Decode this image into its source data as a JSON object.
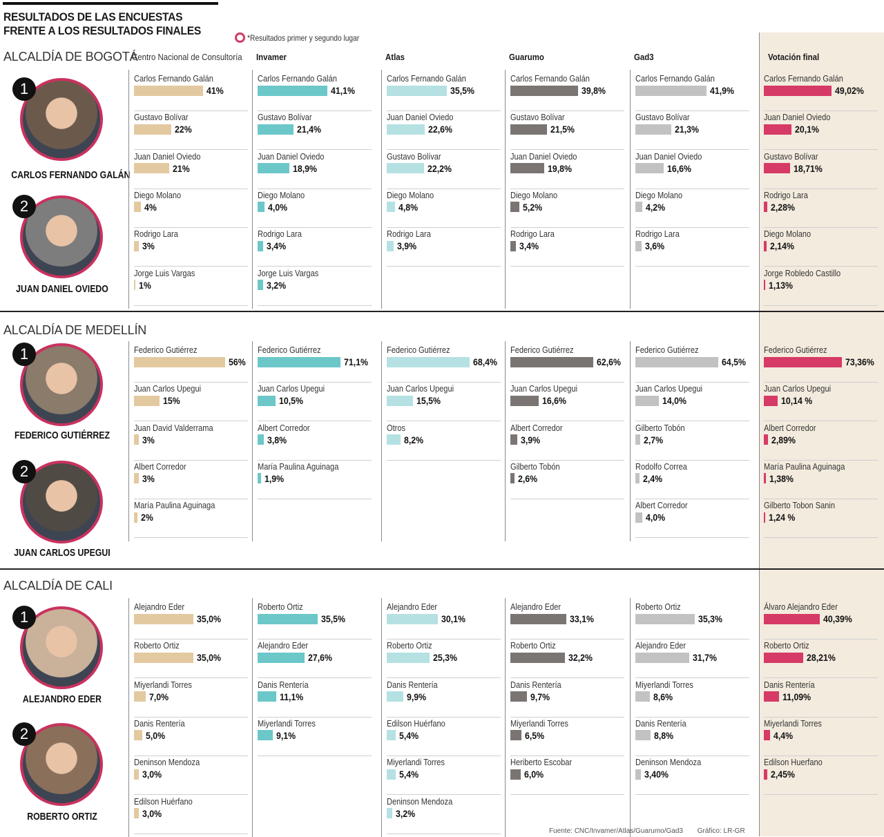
{
  "header": {
    "title_line1": "RESULTADOS DE LAS ENCUESTAS",
    "title_line2": "FRENTE A LOS RESULTADOS FINALES",
    "legend_text": "*Resultados primer y segundo lugar"
  },
  "colors": {
    "cnc": "#e3c9a0",
    "invamer": "#6cc7c8",
    "atlas": "#b5e1e3",
    "guarumo": "#7a7572",
    "gad3": "#c2c2c2",
    "final": "#d63a66",
    "final_bg": "#f3ebde",
    "ring": "#c9325e"
  },
  "pollsters": [
    "Centro Nacional de Consultoría",
    "Invamer",
    "Atlas",
    "Guarumo",
    "Gad3",
    "Votación final"
  ],
  "sections": [
    {
      "title": "ALCALDÍA DE BOGOTÁ",
      "candidates": [
        {
          "rank": "1",
          "name": "CARLOS FERNANDO GALÁN"
        },
        {
          "rank": "2",
          "name": "JUAN DANIEL OVIEDO"
        }
      ]
    },
    {
      "title": "ALCALDÍA DE MEDELLÍN",
      "candidates": [
        {
          "rank": "1",
          "name": "FEDERICO GUTIÉRREZ"
        },
        {
          "rank": "2",
          "name": "JUAN CARLOS UPEGUI"
        }
      ]
    },
    {
      "title": "ALCALDÍA DE CALI",
      "candidates": [
        {
          "rank": "1",
          "name": "ALEJANDRO EDER"
        },
        {
          "rank": "2",
          "name": "ROBERTO ORTIZ"
        }
      ]
    }
  ],
  "footer": {
    "source": "Fuente: CNC/Invamer/Atlas/Guarumo/Gad3",
    "credit": "Gráfico: LR-GR"
  },
  "chart_data": [
    {
      "type": "bar",
      "title": "ALCALDÍA DE BOGOTÁ",
      "unit": "%",
      "series": [
        {
          "name": "Centro Nacional de Consultoría",
          "categories": [
            "Carlos Fernando Galán",
            "Gustavo Bolívar",
            "Juan Daniel Oviedo",
            "Diego Molano",
            "Rodrigo Lara",
            "Jorge Luis Vargas"
          ],
          "values": [
            41,
            22,
            21,
            4,
            3,
            1
          ],
          "labels": [
            "41%",
            "22%",
            "21%",
            "4%",
            "3%",
            "1%"
          ]
        },
        {
          "name": "Invamer",
          "categories": [
            "Carlos Fernando Galán",
            "Gustavo Bolívar",
            "Juan Daniel Oviedo",
            "Diego Molano",
            "Rodrigo Lara",
            "Jorge Luis Vargas"
          ],
          "values": [
            41.1,
            21.4,
            18.9,
            4.0,
            3.4,
            3.2
          ],
          "labels": [
            "41,1%",
            "21,4%",
            "18,9%",
            "4,0%",
            "3,4%",
            "3,2%"
          ]
        },
        {
          "name": "Atlas",
          "categories": [
            "Carlos Fernando Galán",
            "Juan Daniel Oviedo",
            "Gustavo Bolívar",
            "Diego Molano",
            "Rodrigo Lara"
          ],
          "values": [
            35.5,
            22.6,
            22.2,
            4.8,
            3.9
          ],
          "labels": [
            "35,5%",
            "22,6%",
            "22,2%",
            "4,8%",
            "3,9%"
          ]
        },
        {
          "name": "Guarumo",
          "categories": [
            "Carlos Fernando Galán",
            "Gustavo Bolívar",
            "Juan Daniel Oviedo",
            "Diego Molano",
            "Rodrigo Lara"
          ],
          "values": [
            39.8,
            21.5,
            19.8,
            5.2,
            3.4
          ],
          "labels": [
            "39,8%",
            "21,5%",
            "19,8%",
            "5,2%",
            "3,4%"
          ]
        },
        {
          "name": "Gad3",
          "categories": [
            "Carlos Fernando Galán",
            "Gustavo Bolívar",
            "Juan Daniel Oviedo",
            "Diego Molano",
            "Rodrigo Lara"
          ],
          "values": [
            41.9,
            21.3,
            16.6,
            4.2,
            3.6
          ],
          "labels": [
            "41,9%",
            "21,3%",
            "16,6%",
            "4,2%",
            "3,6%"
          ]
        },
        {
          "name": "Votación final",
          "categories": [
            "Carlos Fernando Galán",
            "Juan Daniel Oviedo",
            "Gustavo Bolívar",
            "Rodrigo Lara",
            "Diego Molano",
            "Jorge  Robledo Castillo"
          ],
          "values": [
            49.02,
            20.1,
            18.71,
            2.28,
            2.14,
            1.13
          ],
          "labels": [
            "49,02%",
            "20,1%",
            "18,71%",
            "2,28%",
            "2,14%",
            "1,13%"
          ]
        }
      ]
    },
    {
      "type": "bar",
      "title": "ALCALDÍA DE MEDELLÍN",
      "unit": "%",
      "series": [
        {
          "name": "Centro Nacional de Consultoría",
          "categories": [
            "Federico Gutiérrez",
            "Juan Carlos Upegui",
            "Juan David Valderrama",
            "Albert Corredor",
            "María Paulina Aguinaga"
          ],
          "values": [
            56,
            15,
            3,
            3,
            2
          ],
          "labels": [
            "56%",
            "15%",
            "3%",
            "3%",
            "2%"
          ]
        },
        {
          "name": "Invamer",
          "categories": [
            "Federico Gutiérrez",
            "Juan Carlos Upegui",
            "Albert Corredor",
            "María Paulina Aguinaga"
          ],
          "values": [
            71.1,
            10.5,
            3.8,
            1.9
          ],
          "labels": [
            "71,1%",
            "10,5%",
            "3,8%",
            "1,9%"
          ]
        },
        {
          "name": "Atlas",
          "categories": [
            "Federico Gutiérrez",
            "Juan Carlos Upegui",
            "Otros"
          ],
          "values": [
            68.4,
            15.5,
            8.2
          ],
          "labels": [
            "68,4%",
            "15,5%",
            "8,2%"
          ]
        },
        {
          "name": "Guarumo",
          "categories": [
            "Federico Gutiérrez",
            "Juan Carlos Upegui",
            "Albert Corredor",
            "Gilberto Tobón"
          ],
          "values": [
            62.6,
            16.6,
            3.9,
            2.6
          ],
          "labels": [
            "62,6%",
            "16,6%",
            "3,9%",
            "2,6%"
          ]
        },
        {
          "name": "Gad3",
          "categories": [
            "Federico Gutiérrez",
            "Juan Carlos Upegui",
            "Gilberto Tobón",
            "Rodolfo Correa",
            "Albert Corredor"
          ],
          "values": [
            64.5,
            14.0,
            2.7,
            2.4,
            4.0
          ],
          "labels": [
            "64,5%",
            "14,0%",
            "2,7%",
            "2,4%",
            "4,0%"
          ]
        },
        {
          "name": "Votación final",
          "categories": [
            "Federico Gutiérrez",
            "Juan Carlos Upegui",
            "Albert Corredor",
            "María Paulina Aguinaga",
            "Gilberto Tobon Sanin"
          ],
          "values": [
            73.36,
            10.14,
            2.89,
            1.38,
            1.24
          ],
          "labels": [
            "73,36%",
            "10,14 %",
            "2,89%",
            "1,38%",
            "1,24 %"
          ]
        }
      ]
    },
    {
      "type": "bar",
      "title": "ALCALDÍA DE CALI",
      "unit": "%",
      "series": [
        {
          "name": "Centro Nacional de Consultoría",
          "categories": [
            "Alejandro Eder",
            "Roberto Ortiz",
            "Miyerlandi Torres",
            "Danis Rentería",
            "Deninson Mendoza",
            "Edilson Huérfano"
          ],
          "values": [
            35.0,
            35.0,
            7.0,
            5.0,
            3.0,
            3.0
          ],
          "labels": [
            "35,0%",
            "35,0%",
            "7,0%",
            "5,0%",
            "3,0%",
            "3,0%"
          ]
        },
        {
          "name": "Invamer",
          "categories": [
            "Roberto Ortiz",
            "Alejandro Eder",
            "Danis Rentería",
            "Miyerlandi Torres"
          ],
          "values": [
            35.5,
            27.6,
            11.1,
            9.1
          ],
          "labels": [
            "35,5%",
            "27,6%",
            "11,1%",
            "9,1%"
          ]
        },
        {
          "name": "Atlas",
          "categories": [
            "Alejandro Eder",
            "Roberto Ortiz",
            "Danis Rentería",
            "Edilson Huérfano",
            "Miyerlandi Torres",
            "Deninson Mendoza"
          ],
          "values": [
            30.1,
            25.3,
            9.9,
            5.4,
            5.4,
            3.2
          ],
          "labels": [
            "30,1%",
            "25,3%",
            "9,9%",
            "5,4%",
            "5,4%",
            "3,2%"
          ]
        },
        {
          "name": "Guarumo",
          "categories": [
            "Alejandro Eder",
            "Roberto Ortiz",
            "Danis Rentería",
            "Miyerlandi Torres",
            "Heriberto Escobar"
          ],
          "values": [
            33.1,
            32.2,
            9.7,
            6.5,
            6.0
          ],
          "labels": [
            "33,1%",
            "32,2%",
            "9,7%",
            "6,5%",
            "6,0%"
          ]
        },
        {
          "name": "Gad3",
          "categories": [
            "Roberto Ortiz",
            "Alejandro Eder",
            "Miyerlandi Torres",
            "Danis Rentería",
            "Deninson Mendoza"
          ],
          "values": [
            35.3,
            31.7,
            8.6,
            8.8,
            3.4
          ],
          "labels": [
            "35,3%",
            "31,7%",
            "8,6%",
            "8,8%",
            "3,40%"
          ]
        },
        {
          "name": "Votación final",
          "categories": [
            "Álvaro Alejandro Eder",
            "Roberto Ortiz",
            "Danis Rentería",
            "Miyerlandi Torres",
            "Edilson Huerfano"
          ],
          "values": [
            40.39,
            28.21,
            11.09,
            4.4,
            2.45
          ],
          "labels": [
            "40,39%",
            "28,21%",
            "11,09%",
            "4,4%",
            "2,45%"
          ]
        }
      ]
    }
  ]
}
